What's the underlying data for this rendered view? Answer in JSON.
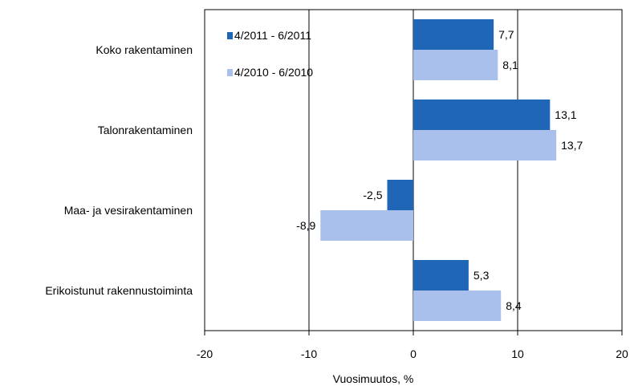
{
  "chart_data": {
    "type": "bar",
    "orientation": "horizontal",
    "categories": [
      "Koko rakentaminen",
      "Talonrakentaminen",
      "Maa- ja vesirakentaminen",
      "Erikoistunut rakennustoiminta"
    ],
    "series": [
      {
        "name": "4/2011 - 6/2011",
        "values": [
          7.7,
          13.1,
          -2.5,
          5.3
        ],
        "labels": [
          "7,7",
          "13,1",
          "-2,5",
          "5,3"
        ],
        "color": "#1f66b7"
      },
      {
        "name": "4/2010 - 6/2010",
        "values": [
          8.1,
          13.7,
          -8.9,
          8.4
        ],
        "labels": [
          "8,1",
          "13,7",
          "-8,9",
          "8,4"
        ],
        "color": "#a9bfec"
      }
    ],
    "xlabel": "Vuosimuutos, %",
    "xlim": [
      -20,
      20
    ],
    "xticks": [
      -20,
      -10,
      0,
      10,
      20
    ],
    "xtick_labels": [
      "-20",
      "-10",
      "0",
      "10",
      "20"
    ],
    "grid": "vertical",
    "legend_position": "top-left-inside"
  }
}
